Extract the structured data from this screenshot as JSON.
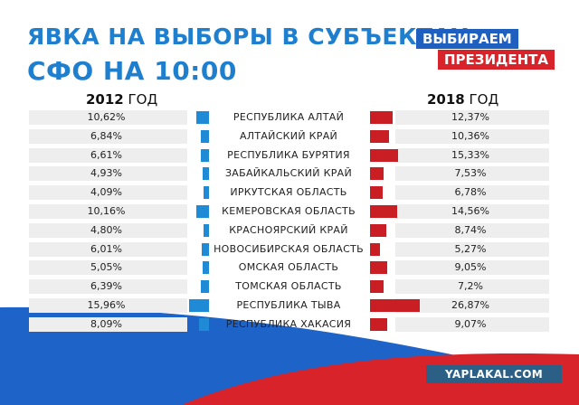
{
  "header": {
    "title_line1": "ЯВКА НА ВЫБОРЫ В СУБЪЕКТАХ",
    "title_line2": "СФО НА 10:00",
    "brand_line1": "ВЫБИРАЕМ",
    "brand_line2": "ПРЕЗИДЕНТА"
  },
  "colors": {
    "title": "#1f7fcf",
    "left_bars": "#1f8ad6",
    "right_bars": "#c81e24",
    "row_background": "#eeeeee",
    "flag_white": "#ffffff",
    "flag_blue": "#1e63c8",
    "flag_red": "#d8232a"
  },
  "watermark": "YAPLAKAL.COM",
  "chart_data": {
    "type": "bar",
    "title": "ЯВКА НА ВЫБОРЫ В СУБЪЕКТАХ СФО НА 10:00",
    "categories": [
      "РЕСПУБЛИКА АЛТАЙ",
      "АЛТАЙСКИЙ КРАЙ",
      "РЕСПУБЛИКА БУРЯТИЯ",
      "ЗАБАЙКАЛЬСКИЙ КРАЙ",
      "ИРКУТСКАЯ ОБЛАСТЬ",
      "КЕМЕРОВСКАЯ ОБЛАСТЬ",
      "КРАСНОЯРСКИЙ КРАЙ",
      "НОВОСИБИРСКАЯ ОБЛАСТЬ",
      "ОМСКАЯ ОБЛАСТЬ",
      "ТОМСКАЯ ОБЛАСТЬ",
      "РЕСПУБЛИКА ТЫВА",
      "РЕСПУБЛИКА ХАКАСИЯ"
    ],
    "series": [
      {
        "name": "2012",
        "name_label": "ГОД",
        "values": [
          10.62,
          6.84,
          6.61,
          4.93,
          4.09,
          10.16,
          4.8,
          6.01,
          5.05,
          6.39,
          15.96,
          8.09
        ],
        "labels": [
          "10,62%",
          "6,84%",
          "6,61%",
          "4,93%",
          "4,09%",
          "10,16%",
          "4,80%",
          "6,01%",
          "5,05%",
          "6,39%",
          "15,96%",
          "8,09%"
        ]
      },
      {
        "name": "2018",
        "name_label": "ГОД",
        "values": [
          12.37,
          10.36,
          15.33,
          7.53,
          6.78,
          14.56,
          8.74,
          5.27,
          9.05,
          7.2,
          26.87,
          9.07
        ],
        "labels": [
          "12,37%",
          "10,36%",
          "15,33%",
          "7,53%",
          "6,78%",
          "14,56%",
          "8,74%",
          "5,27%",
          "9,05%",
          "7,2%",
          "26,87%",
          "9,07%"
        ]
      }
    ],
    "legend": "top",
    "grid": false
  }
}
